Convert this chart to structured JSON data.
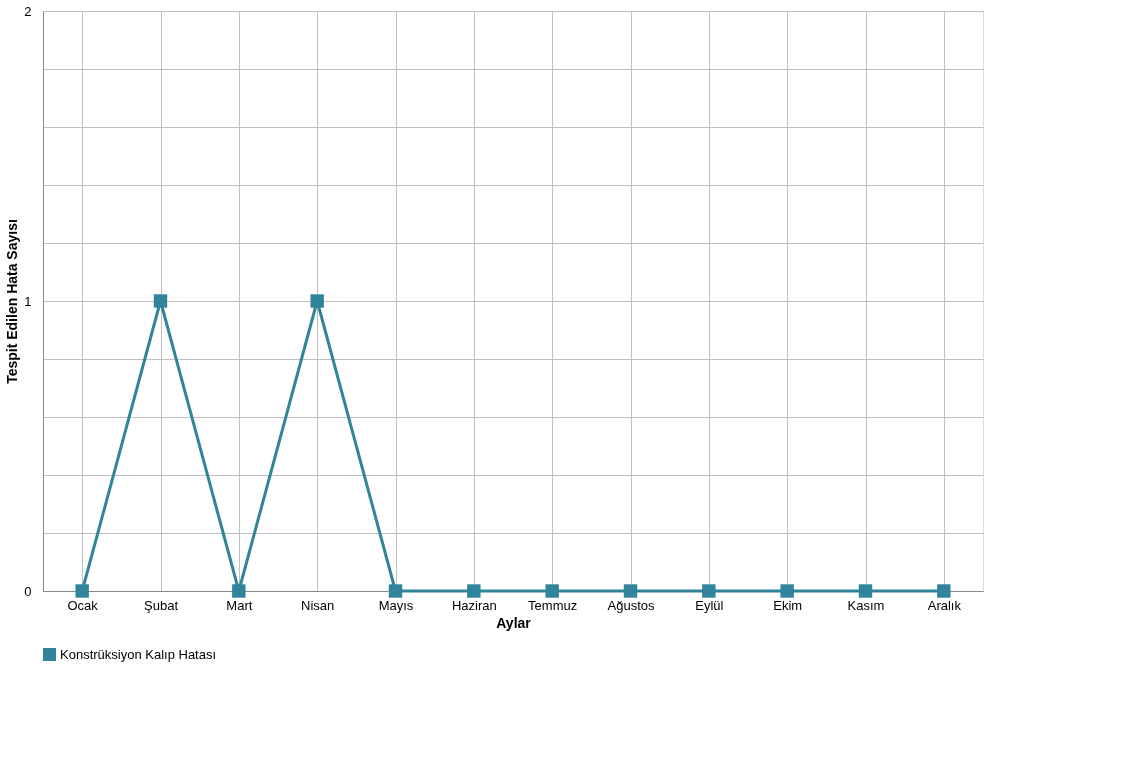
{
  "chart_data": {
    "type": "line",
    "xlabel": "Aylar",
    "ylabel": "Tespit Edilen Hata Sayısı",
    "categories": [
      "Ocak",
      "Şubat",
      "Mart",
      "Nisan",
      "Mayıs",
      "Haziran",
      "Temmuz",
      "Ağustos",
      "Eylül",
      "Ekim",
      "Kasım",
      "Aralık"
    ],
    "series": [
      {
        "name": "Konstrüksiyon Kalıp Hatası",
        "color": "#31849b",
        "values": [
          0,
          1,
          0,
          1,
          0,
          0,
          0,
          0,
          0,
          0,
          0,
          0
        ]
      }
    ],
    "ylim": [
      0,
      2
    ],
    "yticks": [
      0,
      {
        "value": 0.2,
        "label": null
      },
      {
        "value": 0.4,
        "label": null
      },
      {
        "value": 0.6,
        "label": null
      },
      {
        "value": 0.8,
        "label": null
      },
      1,
      {
        "value": 1.2,
        "label": null
      },
      {
        "value": 1.4,
        "label": null
      },
      {
        "value": 1.6,
        "label": null
      },
      {
        "value": 1.8,
        "label": null
      },
      2
    ],
    "grid": true,
    "legend": "bottom",
    "marker": "square",
    "line_style": "solid"
  }
}
